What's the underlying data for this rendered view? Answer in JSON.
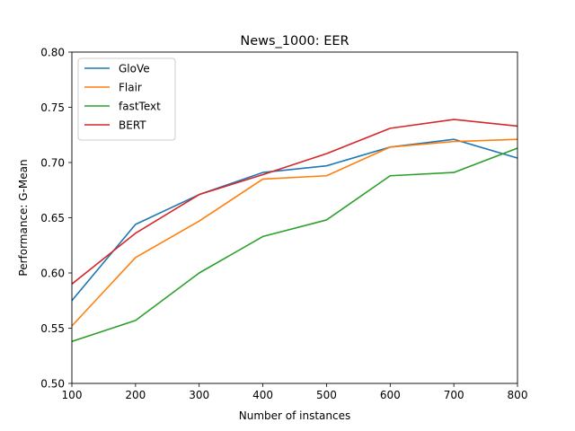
{
  "chart_data": {
    "type": "line",
    "title": "News_1000: EER",
    "xlabel": "Number of instances",
    "ylabel": "Performance: G-Mean",
    "x": [
      100,
      200,
      300,
      400,
      500,
      600,
      700,
      800
    ],
    "xlim": [
      100,
      800
    ],
    "ylim": [
      0.5,
      0.8
    ],
    "xticks": [
      "100",
      "200",
      "300",
      "400",
      "500",
      "600",
      "700",
      "800"
    ],
    "yticks": [
      "0.50",
      "0.55",
      "0.60",
      "0.65",
      "0.70",
      "0.75",
      "0.80"
    ],
    "grid": false,
    "legend_position": "top-left",
    "series": [
      {
        "name": "GloVe",
        "color": "#1f77b4",
        "values": [
          0.575,
          0.644,
          0.671,
          0.691,
          0.697,
          0.714,
          0.721,
          0.704
        ]
      },
      {
        "name": "Flair",
        "color": "#ff7f0e",
        "values": [
          0.552,
          0.614,
          0.647,
          0.685,
          0.688,
          0.714,
          0.719,
          0.721
        ]
      },
      {
        "name": "fastText",
        "color": "#2ca02c",
        "values": [
          0.538,
          0.557,
          0.6,
          0.633,
          0.648,
          0.688,
          0.691,
          0.713
        ]
      },
      {
        "name": "BERT",
        "color": "#d62728",
        "values": [
          0.59,
          0.636,
          0.671,
          0.689,
          0.708,
          0.731,
          0.739,
          0.733
        ]
      }
    ]
  }
}
